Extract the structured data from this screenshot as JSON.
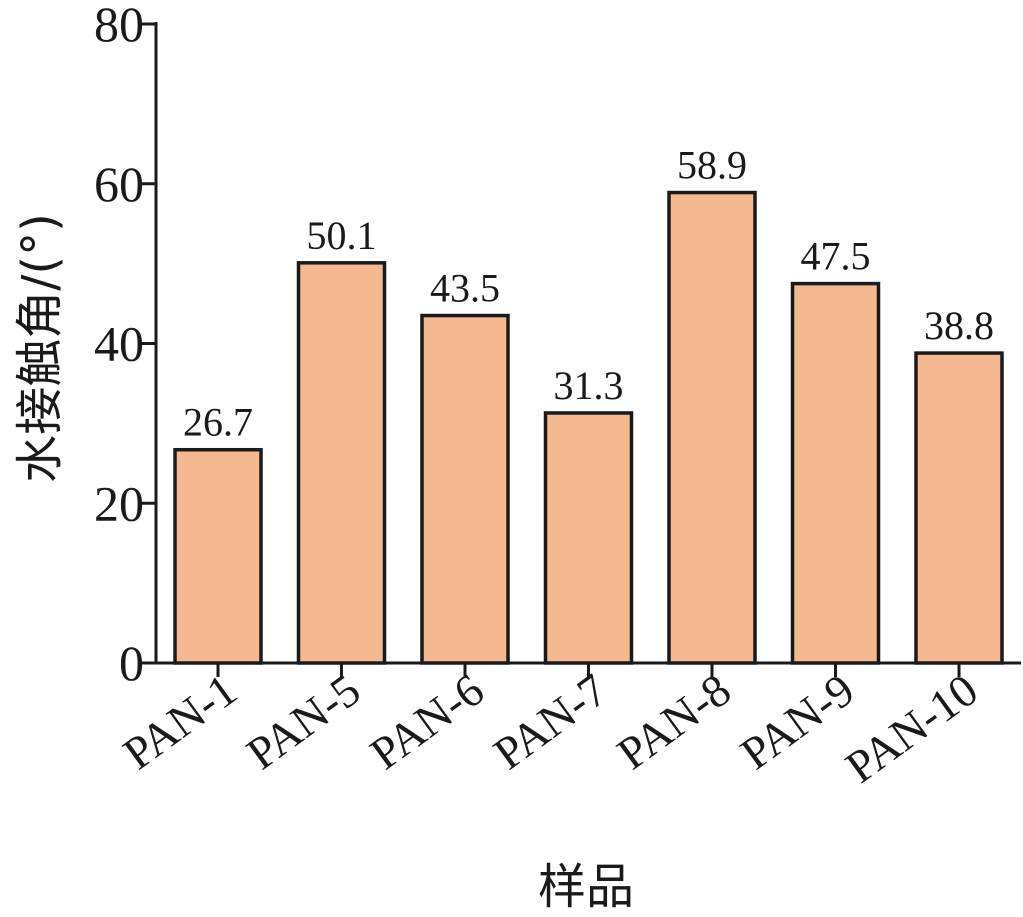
{
  "chart_data": {
    "type": "bar",
    "title": "",
    "xlabel": "样品",
    "ylabel": "水接触角/(°)",
    "categories": [
      "PAN-1",
      "PAN-5",
      "PAN-6",
      "PAN-7",
      "PAN-8",
      "PAN-9",
      "PAN-10"
    ],
    "values": [
      26.7,
      50.1,
      43.5,
      31.3,
      58.9,
      47.5,
      38.8
    ],
    "data_labels": [
      "26.7",
      "50.1",
      "43.5",
      "31.3",
      "58.9",
      "47.5",
      "38.8"
    ],
    "ylim": [
      0,
      80
    ],
    "yticks": [
      0,
      20,
      40,
      60,
      80
    ],
    "bar_color": "#F4B990",
    "edge_color": "#1a1a1a",
    "grid": false,
    "legend": "none"
  }
}
